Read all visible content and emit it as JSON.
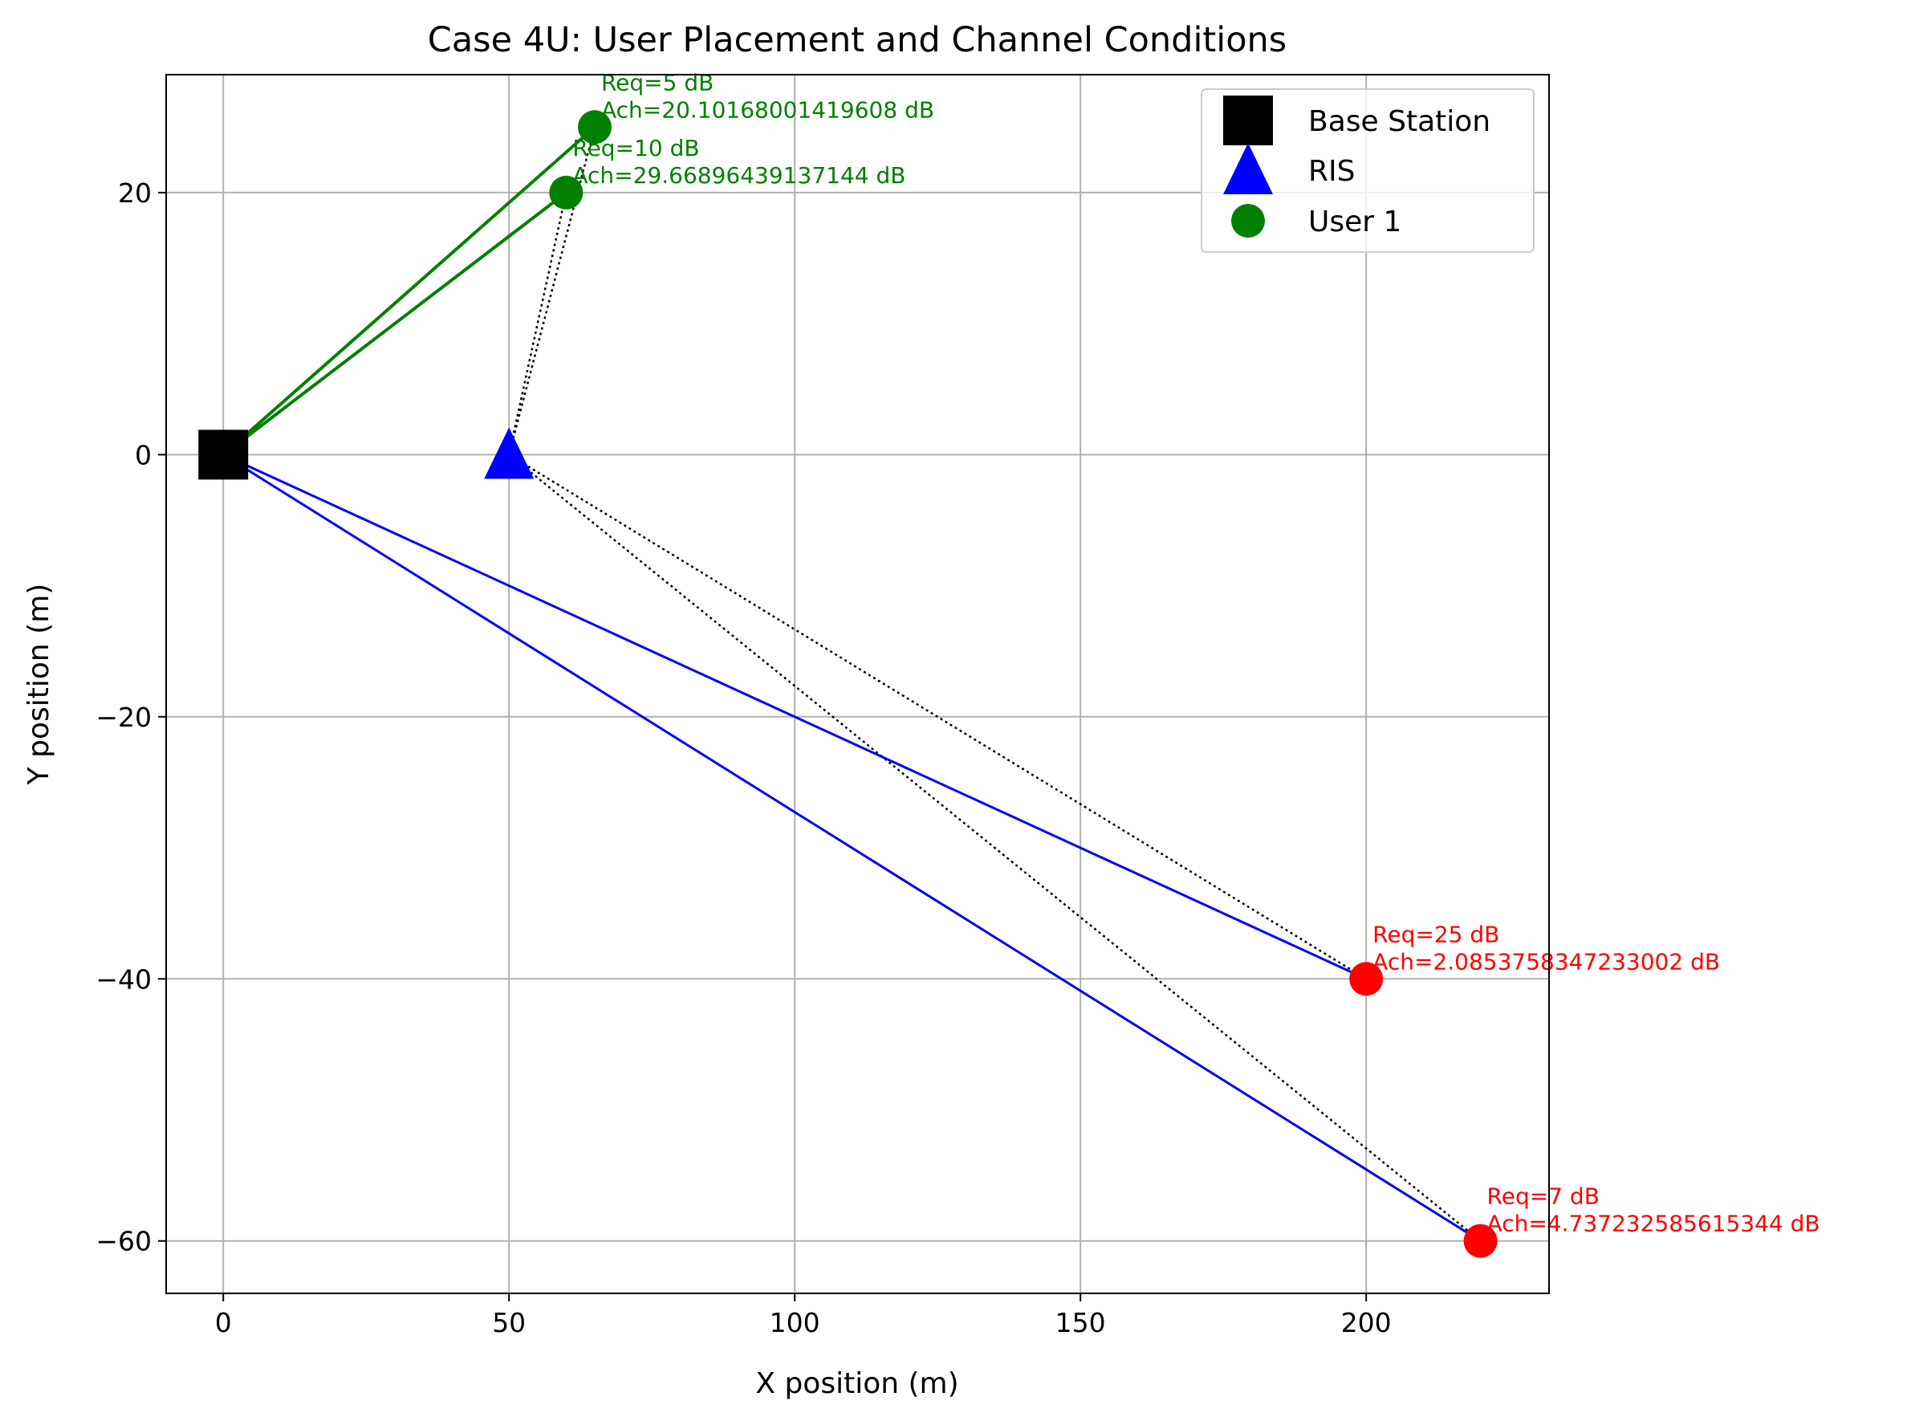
{
  "chart_data": {
    "type": "scatter",
    "title": "Case 4U: User Placement and Channel Conditions",
    "xlabel": "X position (m)",
    "ylabel": "Y position (m)",
    "xlim": [
      -10,
      232
    ],
    "ylim": [
      -64,
      29
    ],
    "xticks": [
      0,
      50,
      100,
      150,
      200
    ],
    "yticks": [
      -60,
      -40,
      -20,
      0,
      20
    ],
    "xtick_labels": [
      "0",
      "50",
      "100",
      "150",
      "200"
    ],
    "ytick_labels": [
      "−60",
      "−40",
      "−20",
      "0",
      "20"
    ],
    "grid": true,
    "legend_position": "top-right",
    "legend": [
      {
        "label": "Base Station",
        "marker": "square",
        "color": "#000000"
      },
      {
        "label": "RIS",
        "marker": "triangle",
        "color": "#0000ff"
      },
      {
        "label": "User 1",
        "marker": "circle",
        "color": "#008000"
      }
    ],
    "base_station": {
      "x": 0,
      "y": 0,
      "color": "#000000"
    },
    "ris": {
      "x": 50,
      "y": 0,
      "color": "#0000ff"
    },
    "users": [
      {
        "x": 65,
        "y": 25,
        "color": "#008000",
        "req": "Req=5 dB",
        "ach": "Ach=20.10168001419608 dB"
      },
      {
        "x": 60,
        "y": 20,
        "color": "#008000",
        "req": "Req=10 dB",
        "ach": "Ach=29.66896439137144 dB"
      },
      {
        "x": 200,
        "y": -40,
        "color": "#ff0000",
        "req": "Req=25 dB",
        "ach": "Ach=2.0853758347233002 dB"
      },
      {
        "x": 220,
        "y": -60,
        "color": "#ff0000",
        "req": "Req=7 dB",
        "ach": "Ach=4.737232585615344 dB"
      }
    ],
    "direct_link_colors": [
      "#008000",
      "#008000",
      "#0000ff",
      "#0000ff"
    ],
    "ris_link_color": "#000000"
  }
}
